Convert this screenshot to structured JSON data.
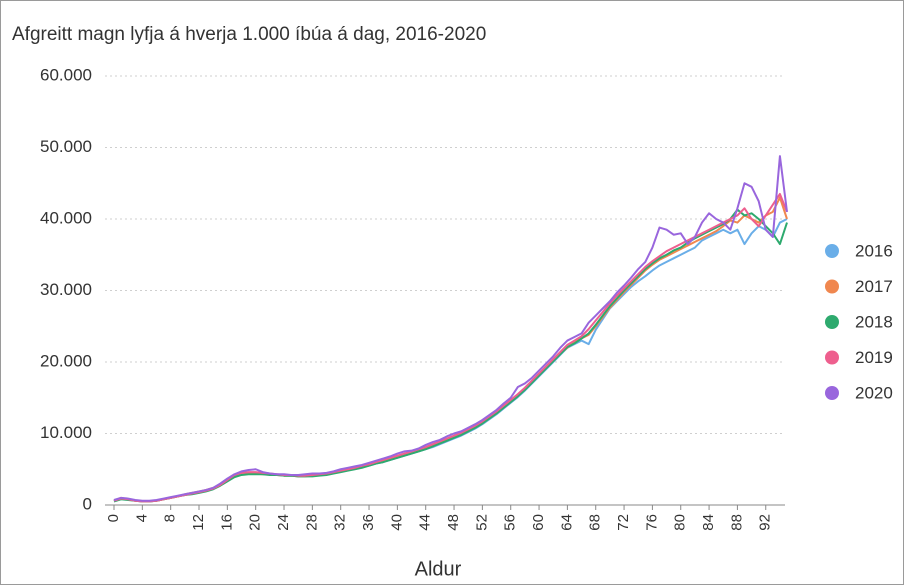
{
  "chart_data": {
    "type": "line",
    "title": "Afgreitt magn lyfja á hverja 1.000 íbúa á dag, 2016-2020",
    "x_label": "Aldur",
    "x": [
      0,
      1,
      2,
      3,
      4,
      5,
      6,
      7,
      8,
      9,
      10,
      11,
      12,
      13,
      14,
      15,
      16,
      17,
      18,
      19,
      20,
      21,
      22,
      23,
      24,
      25,
      26,
      27,
      28,
      29,
      30,
      31,
      32,
      33,
      34,
      35,
      36,
      37,
      38,
      39,
      40,
      41,
      42,
      43,
      44,
      45,
      46,
      47,
      48,
      49,
      50,
      51,
      52,
      53,
      54,
      55,
      56,
      57,
      58,
      59,
      60,
      61,
      62,
      63,
      64,
      65,
      66,
      67,
      68,
      69,
      70,
      71,
      72,
      73,
      74,
      75,
      76,
      77,
      78,
      79,
      80,
      81,
      82,
      83,
      84,
      85,
      86,
      87,
      88,
      89,
      90,
      91,
      92,
      93,
      94,
      95
    ],
    "xlim": [
      0,
      95
    ],
    "xticks": [
      0,
      4,
      8,
      12,
      16,
      20,
      24,
      28,
      32,
      36,
      40,
      44,
      48,
      52,
      56,
      60,
      64,
      68,
      72,
      76,
      80,
      84,
      88,
      92
    ],
    "ylim": [
      0,
      60000
    ],
    "yticks": [
      0,
      {
        "value": 10000,
        "label": "10.000"
      },
      {
        "value": 20000,
        "label": "20.000"
      },
      {
        "value": 30000,
        "label": "30.000"
      },
      {
        "value": 40000,
        "label": "40.000"
      },
      {
        "value": 50000,
        "label": "50.000"
      },
      {
        "value": 60000,
        "label": "60.000"
      }
    ],
    "grid": true,
    "legend": "right",
    "series": [
      {
        "name": "2016",
        "color": "#6aaee8",
        "values": [
          500,
          900,
          800,
          600,
          500,
          500,
          600,
          800,
          1000,
          1200,
          1400,
          1600,
          1800,
          2000,
          2300,
          2800,
          3500,
          4100,
          4400,
          4500,
          4500,
          4400,
          4300,
          4200,
          4200,
          4100,
          4100,
          4100,
          4100,
          4200,
          4300,
          4500,
          4700,
          4900,
          5100,
          5300,
          5500,
          5800,
          6000,
          6300,
          6600,
          6900,
          7200,
          7500,
          7800,
          8100,
          8500,
          8900,
          9300,
          9700,
          10200,
          10700,
          11300,
          12000,
          12700,
          13500,
          14300,
          15100,
          16000,
          17000,
          18000,
          19000,
          20000,
          21000,
          22000,
          22500,
          23000,
          22500,
          24500,
          26000,
          27500,
          28500,
          29500,
          30500,
          31300,
          32000,
          32800,
          33500,
          34000,
          34500,
          35000,
          35500,
          36000,
          37000,
          37500,
          38000,
          38500,
          38000,
          38500,
          36500,
          38000,
          39000,
          38500,
          37500,
          39500,
          40000
        ]
      },
      {
        "name": "2017",
        "color": "#f0874f",
        "values": [
          600,
          1000,
          800,
          600,
          500,
          500,
          600,
          800,
          1000,
          1200,
          1500,
          1700,
          1900,
          2100,
          2400,
          2900,
          3600,
          4200,
          4500,
          4500,
          4400,
          4300,
          4300,
          4200,
          4100,
          4100,
          4000,
          4000,
          4100,
          4200,
          4400,
          4600,
          4800,
          5000,
          5200,
          5400,
          5700,
          5900,
          6200,
          6400,
          6700,
          7000,
          7300,
          7600,
          7900,
          8300,
          8700,
          9100,
          9500,
          9900,
          10400,
          10900,
          11500,
          12200,
          12900,
          13700,
          14500,
          15300,
          16200,
          17200,
          18200,
          19200,
          20200,
          21200,
          22000,
          22800,
          23300,
          23800,
          25000,
          26300,
          27600,
          28700,
          29800,
          30800,
          31800,
          32800,
          33600,
          34300,
          34800,
          35300,
          35800,
          36300,
          36800,
          37300,
          37800,
          38300,
          39000,
          39800,
          39500,
          40500,
          40000,
          39500,
          40500,
          41000,
          43000,
          40000
        ]
      },
      {
        "name": "2018",
        "color": "#2eaa6e",
        "values": [
          500,
          800,
          700,
          600,
          500,
          500,
          600,
          800,
          1000,
          1200,
          1400,
          1500,
          1700,
          1900,
          2200,
          2700,
          3300,
          3900,
          4200,
          4300,
          4300,
          4300,
          4200,
          4200,
          4100,
          4100,
          4000,
          4000,
          4000,
          4100,
          4200,
          4400,
          4600,
          4800,
          5000,
          5200,
          5500,
          5800,
          6000,
          6300,
          6600,
          6900,
          7200,
          7500,
          7800,
          8200,
          8600,
          9000,
          9400,
          9800,
          10300,
          10800,
          11400,
          12100,
          12800,
          13600,
          14400,
          15200,
          16100,
          17100,
          18100,
          19100,
          20100,
          21100,
          22100,
          22600,
          23300,
          24000,
          25200,
          26500,
          27800,
          28900,
          30000,
          31000,
          32000,
          33000,
          33800,
          34500,
          35000,
          35600,
          36000,
          36700,
          37300,
          37800,
          38300,
          38800,
          39300,
          40000,
          41300,
          40500,
          40800,
          40000,
          39000,
          38000,
          36500,
          39500
        ]
      },
      {
        "name": "2019",
        "color": "#ee5f8e",
        "values": [
          600,
          900,
          800,
          600,
          500,
          500,
          600,
          800,
          1000,
          1200,
          1400,
          1600,
          1800,
          2000,
          2300,
          2800,
          3500,
          4200,
          4500,
          4600,
          4600,
          4500,
          4400,
          4300,
          4200,
          4200,
          4100,
          4100,
          4200,
          4300,
          4400,
          4600,
          4800,
          5000,
          5200,
          5500,
          5700,
          6000,
          6300,
          6600,
          6900,
          7200,
          7500,
          7800,
          8100,
          8500,
          8900,
          9300,
          9700,
          10100,
          10600,
          11100,
          11700,
          12400,
          13100,
          13900,
          14700,
          15500,
          16400,
          17400,
          18400,
          19400,
          20400,
          21400,
          22400,
          23000,
          23600,
          24600,
          25800,
          27000,
          28200,
          29300,
          30300,
          31300,
          32300,
          33300,
          34100,
          34800,
          35500,
          36000,
          36500,
          37000,
          37500,
          38000,
          38500,
          39000,
          39500,
          40000,
          40500,
          41500,
          40000,
          39000,
          40500,
          42000,
          43500,
          41000
        ]
      },
      {
        "name": "2020",
        "color": "#9966dd",
        "values": [
          700,
          1000,
          900,
          700,
          600,
          600,
          700,
          900,
          1100,
          1300,
          1500,
          1700,
          1900,
          2100,
          2400,
          3000,
          3700,
          4300,
          4700,
          4900,
          5000,
          4600,
          4400,
          4300,
          4300,
          4200,
          4200,
          4300,
          4400,
          4400,
          4500,
          4700,
          5000,
          5200,
          5400,
          5600,
          5900,
          6200,
          6500,
          6800,
          7200,
          7500,
          7600,
          7900,
          8400,
          8800,
          9100,
          9600,
          10000,
          10300,
          10800,
          11300,
          11900,
          12600,
          13300,
          14200,
          15000,
          16500,
          17000,
          17800,
          18800,
          19800,
          20800,
          22000,
          23000,
          23500,
          24000,
          25500,
          26500,
          27500,
          28500,
          29700,
          30700,
          31800,
          33000,
          34000,
          36000,
          38800,
          38500,
          37800,
          38000,
          36500,
          37500,
          39500,
          40800,
          40000,
          39500,
          38500,
          41500,
          45000,
          44500,
          42500,
          38500,
          37500,
          48800,
          41000
        ]
      }
    ]
  }
}
